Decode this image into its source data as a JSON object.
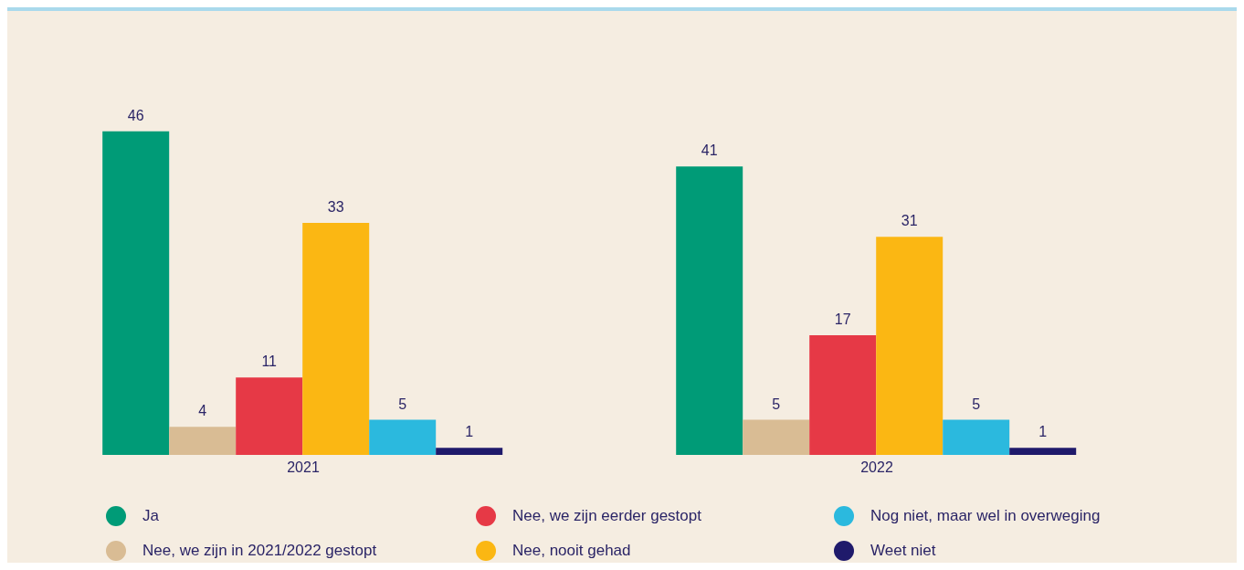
{
  "chart_data": {
    "type": "bar",
    "categories": [
      "2021",
      "2022"
    ],
    "series": [
      {
        "name": "Ja",
        "color": "#009b77",
        "values": [
          46,
          41
        ]
      },
      {
        "name": "Nee, we zijn in 2021/2022 gestopt",
        "color": "#d9bc94",
        "values": [
          4,
          5
        ]
      },
      {
        "name": "Nee, we zijn eerder gestopt",
        "color": "#e63946",
        "values": [
          11,
          17
        ]
      },
      {
        "name": "Nee, nooit gehad",
        "color": "#fbb713",
        "values": [
          33,
          31
        ]
      },
      {
        "name": "Nog niet, maar wel in overweging",
        "color": "#2bb9de",
        "values": [
          5,
          5
        ]
      },
      {
        "name": "Weet niet",
        "color": "#1f1a6b",
        "values": [
          1,
          1
        ]
      }
    ],
    "data_labels": true,
    "legend": "bottom",
    "grid": false
  }
}
